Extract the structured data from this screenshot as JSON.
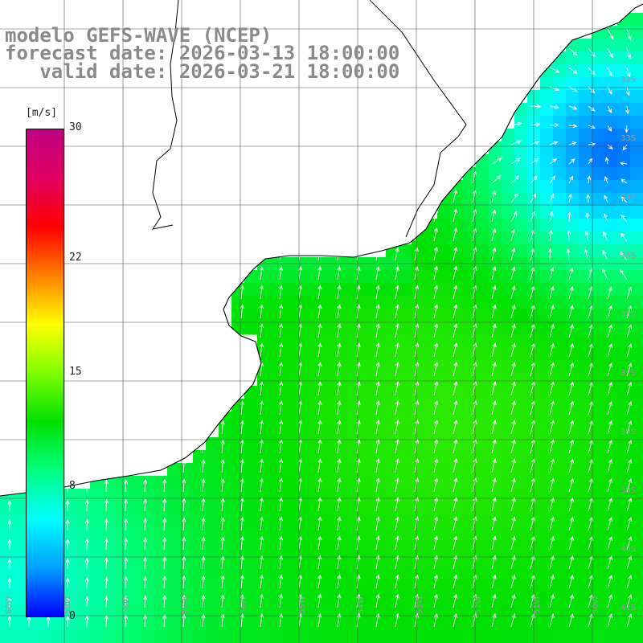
{
  "title": {
    "line1": "modelo GEFS-WAVE (NCEP)",
    "line2": "forecast date: 2026-03-13 18:00:00",
    "line3": "   valid date: 2026-03-21 18:00:00"
  },
  "colorbar": {
    "unit": "[m/s]",
    "ticks": [
      "30",
      "22",
      "15",
      "8",
      "0"
    ],
    "tick_values": [
      30,
      22,
      15,
      8,
      0
    ],
    "range": [
      0,
      30
    ],
    "stops": [
      "#0000ff",
      "#00a0ff",
      "#00ffff",
      "#00ff7f",
      "#00e000",
      "#7fff00",
      "#ffff00",
      "#ff8000",
      "#ff0000",
      "#e00060",
      "#c00080"
    ]
  },
  "lat_labels": [
    "32S",
    "33S",
    "34S",
    "35S",
    "36S",
    "37S",
    "38S",
    "39S",
    "40S",
    "41S"
  ],
  "lon_labels": [
    "60W",
    "59W",
    "58W",
    "57W",
    "56W",
    "55W",
    "54W",
    "53W",
    "52W",
    "51W",
    "50W"
  ],
  "colors": {
    "land": "#ffffff",
    "grid": "#555555",
    "coast": "#000000",
    "arrow": "#ffffff"
  }
}
